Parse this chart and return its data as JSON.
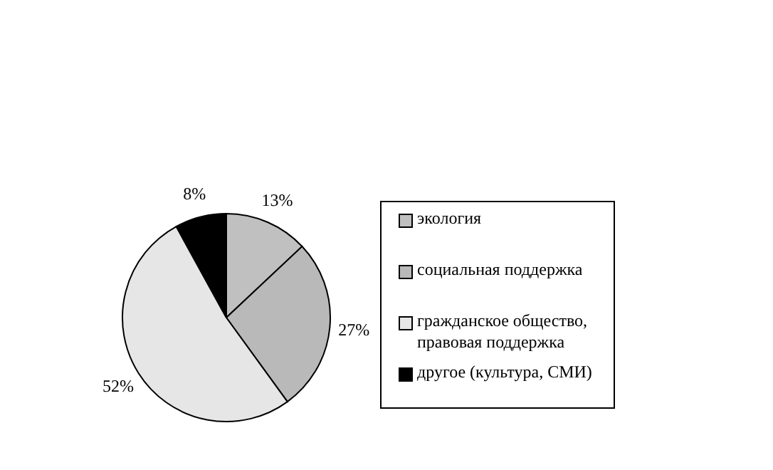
{
  "chart_data": {
    "type": "pie",
    "categories": [
      "экология",
      "социальная поддержка",
      "гражданское общество, правовая поддержка",
      "другое (культура, СМИ)"
    ],
    "values": [
      13,
      27,
      52,
      8
    ],
    "colors": [
      "#c0c0c0",
      "#b9b9b9",
      "#e6e6e6",
      "#000000"
    ],
    "value_labels": [
      "13%",
      "27%",
      "52%",
      "8%"
    ],
    "legend": "right"
  }
}
